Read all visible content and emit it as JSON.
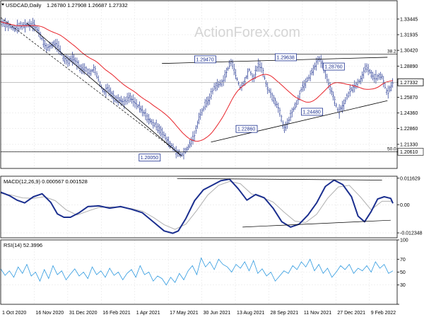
{
  "chart_data": [
    {
      "panel": "price",
      "type": "ohlc",
      "title": "USDCAD,Daily",
      "ohlc_header": "1.26780 1.27908 1.26687 1.27332",
      "ylim": [
        1.19,
        1.3522
      ],
      "y_ticks": [
        "1.33445",
        "1.31935",
        "1.30420",
        "1.28890",
        "1.27332",
        "1.25870",
        "1.24360",
        "1.22860",
        "1.21330",
        "1.20610"
      ],
      "current_price": 1.27332,
      "series": [
        {
          "name": "Price",
          "x": [
            0,
            6,
            12,
            18,
            24,
            30,
            36,
            42,
            46,
            50,
            54,
            58,
            62,
            66,
            70,
            74,
            78,
            82,
            86,
            90,
            93,
            95,
            98,
            101,
            105,
            108,
            111,
            114,
            118,
            122,
            127,
            132,
            137,
            142,
            146,
            150,
            154,
            158,
            162,
            166,
            170,
            174,
            178,
            182,
            188,
            192,
            196,
            200,
            204,
            208,
            212,
            216,
            220,
            224,
            228,
            232,
            236,
            240,
            244,
            248,
            252,
            256,
            260,
            264,
            268,
            272,
            276,
            280,
            284,
            288,
            292,
            296,
            300,
            305,
            310,
            315,
            320,
            325,
            330,
            335,
            340,
            343,
            346,
            350,
            355,
            360
          ],
          "y": [
            1.332,
            1.329,
            1.325,
            1.3275,
            1.3288,
            1.33,
            1.32,
            1.306,
            1.309,
            1.311,
            1.305,
            1.296,
            1.294,
            1.297,
            1.292,
            1.2857,
            1.287,
            1.281,
            1.288,
            1.275,
            1.267,
            1.264,
            1.268,
            1.263,
            1.258,
            1.257,
            1.255,
            1.254,
            1.259,
            1.255,
            1.249,
            1.243,
            1.236,
            1.232,
            1.228,
            1.222,
            1.215,
            1.211,
            1.205,
            1.203,
            1.207,
            1.214,
            1.222,
            1.239,
            1.252,
            1.258,
            1.269,
            1.271,
            1.274,
            1.285,
            1.2945,
            1.279,
            1.268,
            1.274,
            1.286,
            1.276,
            1.2897,
            1.287,
            1.27,
            1.262,
            1.255,
            1.246,
            1.2286,
            1.235,
            1.246,
            1.253,
            1.267,
            1.273,
            1.28,
            1.288,
            1.2964,
            1.289,
            1.275,
            1.261,
            1.2448,
            1.252,
            1.264,
            1.27,
            1.275,
            1.2876,
            1.282,
            1.277,
            1.2786,
            1.279,
            1.262,
            1.273
          ]
        }
      ],
      "annotations": [
        "1.29470",
        "1.29638",
        "1.28760",
        "1.22860",
        "1.24480",
        "1.20050",
        "1.20610",
        "38.2",
        "50.0"
      ]
    },
    {
      "panel": "macd",
      "type": "line",
      "title": "MACD(12,26,9) 0.000567 0.001528",
      "ylim": [
        -0.0145,
        0.0125
      ],
      "y_ticks": [
        "0.011629",
        "0.00",
        "-0.012348"
      ],
      "series": [
        {
          "name": "MACD",
          "x": [
            0,
            8,
            15,
            22,
            30,
            38,
            46,
            52,
            58,
            64,
            72,
            80,
            90,
            100,
            110,
            120,
            130,
            140,
            150,
            158,
            163,
            170,
            178,
            186,
            194,
            202,
            210,
            218,
            226,
            234,
            242,
            250,
            258,
            266,
            274,
            282,
            290,
            298,
            306,
            314,
            322,
            328,
            334,
            340,
            346,
            352,
            358,
            360
          ],
          "y": [
            0.0055,
            0.004,
            0.002,
            0.0008,
            0.0035,
            0.0048,
            0.001,
            -0.004,
            -0.0055,
            -0.0055,
            -0.0035,
            -0.0008,
            -0.0005,
            -0.0015,
            -0.0008,
            -0.002,
            -0.0035,
            -0.0075,
            -0.0115,
            -0.0125,
            -0.0115,
            -0.006,
            0.0018,
            0.0065,
            0.0085,
            0.0105,
            0.0112,
            0.007,
            0.002,
            0.0045,
            0.003,
            -0.0015,
            -0.0075,
            -0.0098,
            -0.0085,
            -0.0045,
            0.0008,
            0.008,
            0.0108,
            0.0088,
            0.0035,
            -0.005,
            -0.0075,
            -0.003,
            0.0025,
            0.0035,
            0.0028,
            0.0006
          ]
        },
        {
          "name": "Signal",
          "x": [
            0,
            10,
            20,
            30,
            40,
            50,
            60,
            70,
            80,
            90,
            100,
            110,
            120,
            130,
            140,
            150,
            160,
            170,
            180,
            190,
            200,
            210,
            220,
            230,
            240,
            250,
            260,
            270,
            280,
            290,
            300,
            310,
            320,
            330,
            340,
            350,
            360
          ],
          "y": [
            0.005,
            0.0042,
            0.003,
            0.0028,
            0.0035,
            0.0018,
            -0.0022,
            -0.0045,
            -0.0028,
            -0.0012,
            -0.0009,
            -0.0011,
            -0.0017,
            -0.0028,
            -0.0055,
            -0.0088,
            -0.0108,
            -0.0085,
            -0.0025,
            0.0042,
            0.0085,
            0.0102,
            0.0092,
            0.0048,
            0.0032,
            0.0012,
            -0.0032,
            -0.0072,
            -0.0078,
            -0.0042,
            0.0028,
            0.0078,
            0.0085,
            0.0035,
            -0.0022,
            0.0015,
            0.0015
          ]
        }
      ]
    },
    {
      "panel": "rsi",
      "type": "line",
      "title": "RSI(14) 52.3996",
      "ylim": [
        0,
        100
      ],
      "y_ticks": [
        "100",
        "70",
        "50",
        "30",
        "0"
      ],
      "series": [
        {
          "name": "RSI",
          "x": [
            0,
            4,
            8,
            12,
            16,
            20,
            24,
            28,
            32,
            36,
            40,
            44,
            48,
            52,
            56,
            60,
            64,
            68,
            72,
            76,
            80,
            84,
            88,
            92,
            96,
            100,
            104,
            108,
            112,
            116,
            120,
            124,
            128,
            132,
            136,
            140,
            144,
            148,
            152,
            156,
            160,
            164,
            168,
            172,
            176,
            180,
            184,
            188,
            192,
            196,
            200,
            204,
            208,
            212,
            216,
            220,
            224,
            228,
            232,
            236,
            240,
            244,
            248,
            252,
            256,
            260,
            264,
            268,
            272,
            276,
            280,
            284,
            288,
            292,
            296,
            300,
            304,
            308,
            312,
            316,
            320,
            324,
            328,
            332,
            336,
            340,
            344,
            348,
            352,
            356,
            360
          ],
          "y": [
            55,
            45,
            52,
            42,
            58,
            48,
            62,
            44,
            50,
            36,
            54,
            40,
            60,
            46,
            52,
            38,
            47,
            55,
            44,
            50,
            40,
            58,
            46,
            52,
            42,
            56,
            45,
            50,
            38,
            48,
            54,
            42,
            60,
            46,
            50,
            36,
            44,
            40,
            30,
            42,
            34,
            48,
            38,
            52,
            60,
            46,
            72,
            58,
            66,
            54,
            70,
            62,
            58,
            50,
            62,
            56,
            66,
            52,
            68,
            48,
            55,
            44,
            50,
            36,
            44,
            52,
            48,
            60,
            54,
            66,
            58,
            70,
            52,
            62,
            48,
            56,
            42,
            50,
            60,
            54,
            62,
            48,
            56,
            52,
            60,
            50,
            66,
            56,
            62,
            48,
            52
          ]
        }
      ]
    }
  ],
  "x_axis_labels": [
    "1 Oct 2020",
    "16 Nov 2020",
    "31 Dec 2020",
    "16 Feb 2021",
    "1 Apr 2021",
    "17 May 2021",
    "30 Jun 2021",
    "13 Aug 2021",
    "28 Sep 2021",
    "11 Nov 2021",
    "27 Dec 2021",
    "9 Feb 2022"
  ],
  "watermark": "ActionForex.com",
  "colors": {
    "bars": "#1b2f8f",
    "moving_average": "#e8232a",
    "macd": "#1b2f8f",
    "signal": "#b0b0b0",
    "rsi": "#2f9ae0",
    "trendline": "#000000",
    "fib_line": "#000000",
    "grid": "#e6e6e6",
    "border": "#000000",
    "current_price_tag": "#ffffff",
    "watermark": "#d5d5d5"
  }
}
